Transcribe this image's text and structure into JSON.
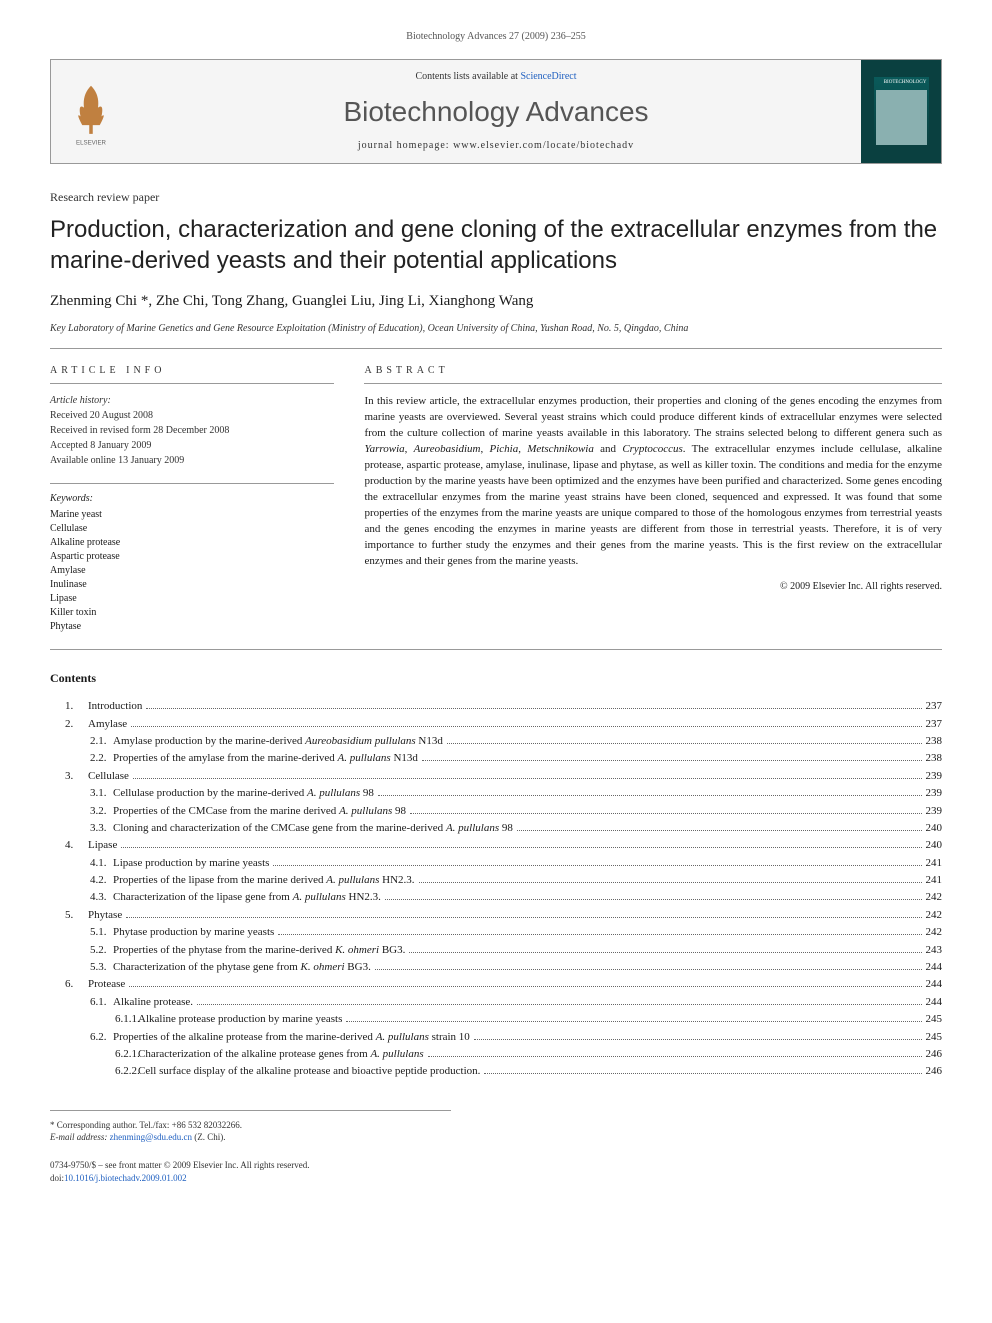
{
  "running_header": "Biotechnology Advances 27 (2009) 236–255",
  "banner": {
    "contents_prefix": "Contents lists available at ",
    "contents_link": "ScienceDirect",
    "journal_name": "Biotechnology Advances",
    "homepage_prefix": "journal homepage: ",
    "homepage_url": "www.elsevier.com/locate/biotechadv",
    "publisher": "ELSEVIER",
    "cover_label": "BIOTECHNOLOGY"
  },
  "article_type": "Research review paper",
  "title": "Production, characterization and gene cloning of the extracellular enzymes from the marine-derived yeasts and their potential applications",
  "authors": "Zhenming Chi *, Zhe Chi, Tong Zhang, Guanglei Liu, Jing Li, Xianghong Wang",
  "affiliation": "Key Laboratory of Marine Genetics and Gene Resource Exploitation (Ministry of Education), Ocean University of China, Yushan Road, No. 5, Qingdao, China",
  "info_header": "ARTICLE INFO",
  "abstract_header": "ABSTRACT",
  "history": {
    "label": "Article history:",
    "received": "Received 20 August 2008",
    "revised": "Received in revised form 28 December 2008",
    "accepted": "Accepted 8 January 2009",
    "online": "Available online 13 January 2009"
  },
  "keywords": {
    "label": "Keywords:",
    "items": [
      "Marine yeast",
      "Cellulase",
      "Alkaline protease",
      "Aspartic protease",
      "Amylase",
      "Inulinase",
      "Lipase",
      "Killer toxin",
      "Phytase"
    ]
  },
  "abstract": "In this review article, the extracellular enzymes production, their properties and cloning of the genes encoding the enzymes from marine yeasts are overviewed. Several yeast strains which could produce different kinds of extracellular enzymes were selected from the culture collection of marine yeasts available in this laboratory. The strains selected belong to different genera such as <em>Yarrowia</em>, <em>Aureobasidium</em>, <em>Pichia</em>, <em>Metschnikowia</em> and <em>Cryptococcus</em>. The extracellular enzymes include cellulase, alkaline protease, aspartic protease, amylase, inulinase, lipase and phytase, as well as killer toxin. The conditions and media for the enzyme production by the marine yeasts have been optimized and the enzymes have been purified and characterized. Some genes encoding the extracellular enzymes from the marine yeast strains have been cloned, sequenced and expressed. It was found that some properties of the enzymes from the marine yeasts are unique compared to those of the homologous enzymes from terrestrial yeasts and the genes encoding the enzymes in marine yeasts are different from those in terrestrial yeasts. Therefore, it is of very importance to further study the enzymes and their genes from the marine yeasts. This is the first review on the extracellular enzymes and their genes from the marine yeasts.",
  "copyright": "© 2009 Elsevier Inc. All rights reserved.",
  "contents_heading": "Contents",
  "toc": [
    {
      "level": 1,
      "num": "1.",
      "label": "Introduction",
      "page": "237"
    },
    {
      "level": 1,
      "num": "2.",
      "label": "Amylase",
      "page": "237"
    },
    {
      "level": 2,
      "num": "2.1.",
      "label": "Amylase production by the marine-derived <em>Aureobasidium pullulans</em> N13d",
      "page": "238"
    },
    {
      "level": 2,
      "num": "2.2.",
      "label": "Properties of the amylase from the marine-derived <em>A. pullulans</em> N13d",
      "page": "238"
    },
    {
      "level": 1,
      "num": "3.",
      "label": "Cellulase",
      "page": "239"
    },
    {
      "level": 2,
      "num": "3.1.",
      "label": "Cellulase production by the marine-derived <em>A. pullulans</em> 98",
      "page": "239"
    },
    {
      "level": 2,
      "num": "3.2.",
      "label": "Properties of the CMCase from the marine derived <em>A. pullulans</em> 98",
      "page": "239"
    },
    {
      "level": 2,
      "num": "3.3.",
      "label": "Cloning and characterization of the CMCase gene from the marine-derived <em>A. pullulans</em> 98",
      "page": "240"
    },
    {
      "level": 1,
      "num": "4.",
      "label": "Lipase",
      "page": "240"
    },
    {
      "level": 2,
      "num": "4.1.",
      "label": "Lipase production by marine yeasts",
      "page": "241"
    },
    {
      "level": 2,
      "num": "4.2.",
      "label": "Properties of the lipase from the marine derived <em>A. pullulans</em> HN2.3.",
      "page": "241"
    },
    {
      "level": 2,
      "num": "4.3.",
      "label": "Characterization of the lipase gene from <em>A. pullulans</em> HN2.3.",
      "page": "242"
    },
    {
      "level": 1,
      "num": "5.",
      "label": "Phytase",
      "page": "242"
    },
    {
      "level": 2,
      "num": "5.1.",
      "label": "Phytase production by marine yeasts",
      "page": "242"
    },
    {
      "level": 2,
      "num": "5.2.",
      "label": "Properties of the phytase from the marine-derived <em>K. ohmeri</em> BG3.",
      "page": "243"
    },
    {
      "level": 2,
      "num": "5.3.",
      "label": "Characterization of the phytase gene from <em>K. ohmeri</em> BG3.",
      "page": "244"
    },
    {
      "level": 1,
      "num": "6.",
      "label": "Protease",
      "page": "244"
    },
    {
      "level": 2,
      "num": "6.1.",
      "label": "Alkaline protease.",
      "page": "244"
    },
    {
      "level": 3,
      "num": "6.1.1.",
      "label": "Alkaline protease production by marine yeasts",
      "page": "245"
    },
    {
      "level": 2,
      "num": "6.2.",
      "label": "Properties of the alkaline protease from the marine-derived <em>A. pullulans</em> strain 10",
      "page": "245"
    },
    {
      "level": 3,
      "num": "6.2.1.",
      "label": "Characterization of the alkaline protease genes from <em>A. pullulans</em>",
      "page": "246"
    },
    {
      "level": 3,
      "num": "6.2.2.",
      "label": "Cell surface display of the alkaline protease and bioactive peptide production.",
      "page": "246"
    }
  ],
  "footnotes": {
    "corr": "* Corresponding author. Tel./fax: +86 532 82032266.",
    "email_label": "E-mail address:",
    "email": "zhenming@sdu.edu.cn",
    "email_suffix": " (Z. Chi)."
  },
  "footer": {
    "issn": "0734-9750/$ – see front matter © 2009 Elsevier Inc. All rights reserved.",
    "doi_label": "doi:",
    "doi": "10.1016/j.biotechadv.2009.01.002"
  },
  "colors": {
    "link": "#2060c0",
    "rule": "#999999",
    "text": "#1a1a1a",
    "cover": "#0a4040"
  }
}
